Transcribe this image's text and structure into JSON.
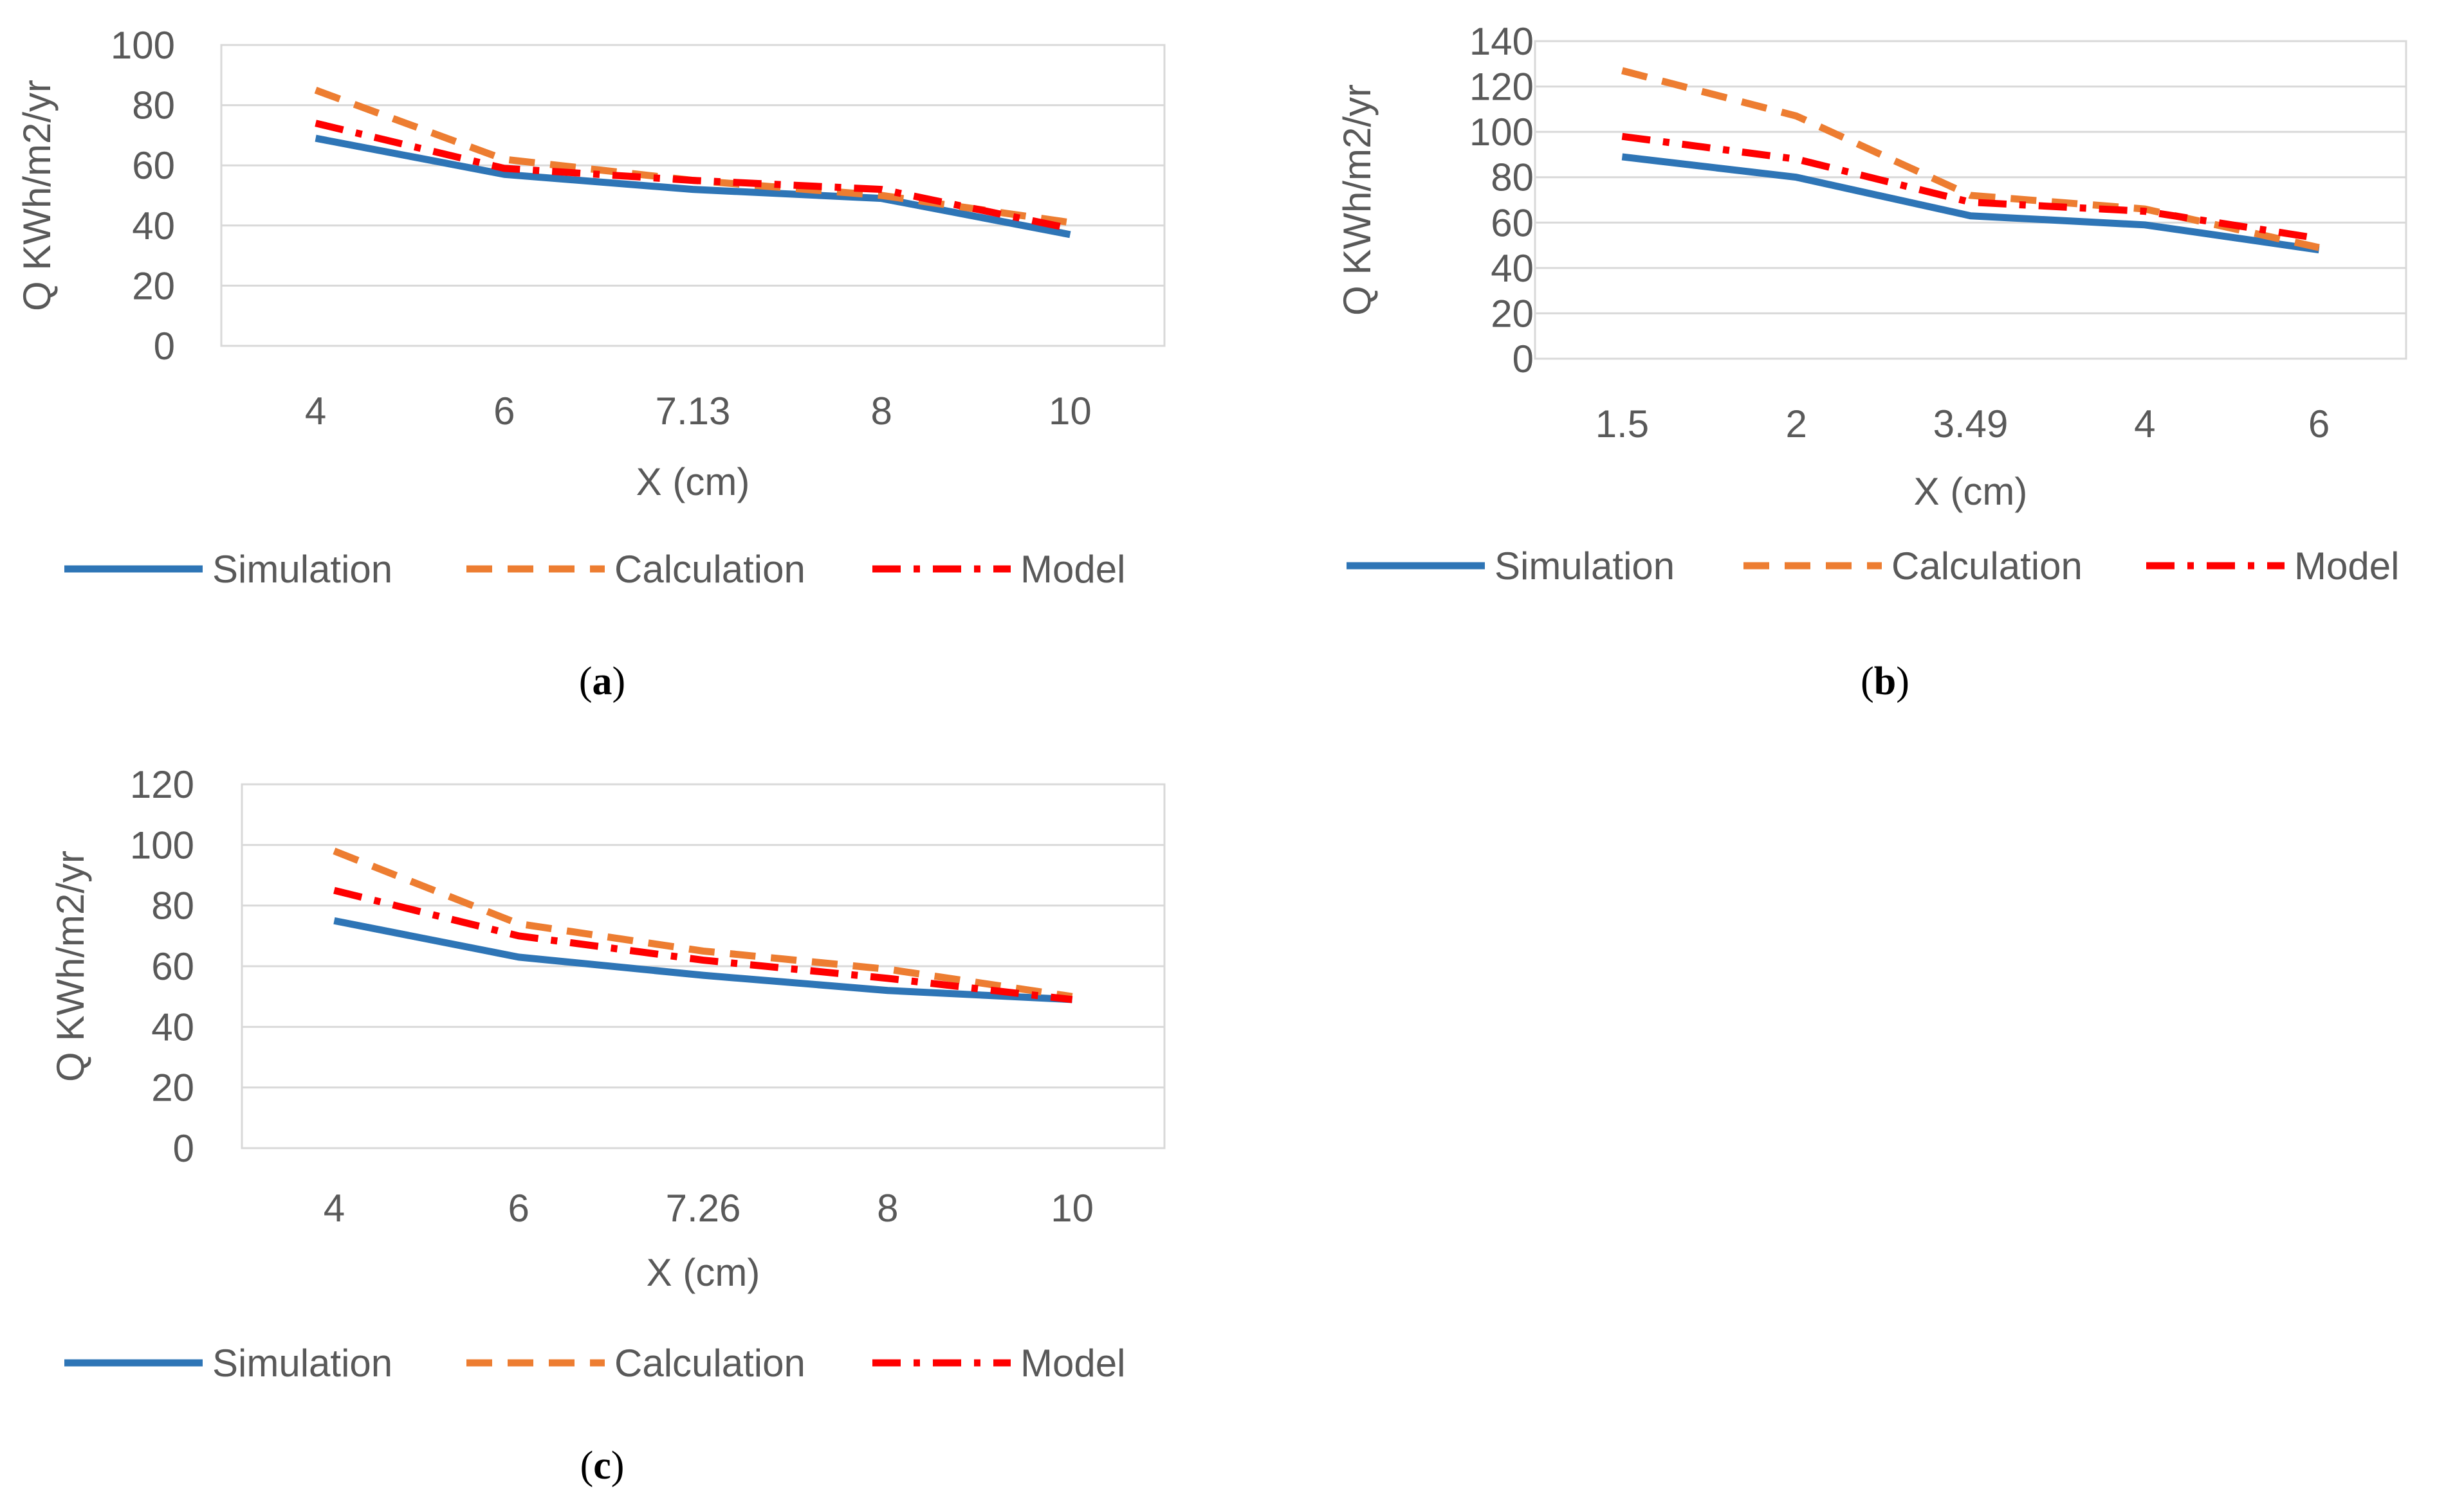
{
  "colors": {
    "simulation": "#2E75B6",
    "calculation": "#ED7D31",
    "model": "#FF0000",
    "grid": "#D9D9D9",
    "text": "#595959"
  },
  "legend": {
    "simulation": "Simulation",
    "calculation": "Calculation",
    "model": "Model"
  },
  "chart_data": [
    {
      "id": "a",
      "type": "line",
      "caption_letter": "a",
      "categories": [
        "4",
        "6",
        "7.13",
        "8",
        "10"
      ],
      "xlabel": "X (cm)",
      "ylabel": "Q KWh/m2/yr",
      "ylim": [
        0,
        100
      ],
      "yticks": [
        "0",
        "20",
        "40",
        "60",
        "80",
        "100"
      ],
      "grid": true,
      "legend_position": "bottom",
      "series": [
        {
          "name": "Simulation",
          "key": "simulation",
          "values": [
            69,
            57,
            52,
            49,
            37
          ]
        },
        {
          "name": "Calculation",
          "key": "calculation",
          "values": [
            85,
            62,
            55,
            50,
            41
          ]
        },
        {
          "name": "Model",
          "key": "model",
          "values": [
            74,
            59,
            55,
            52,
            39
          ]
        }
      ]
    },
    {
      "id": "b",
      "type": "line",
      "caption_letter": "b",
      "categories": [
        "1.5",
        "2",
        "3.49",
        "4",
        "6"
      ],
      "xlabel": "X (cm)",
      "ylabel": "Q KWh/m2/yr",
      "ylim": [
        0,
        140
      ],
      "yticks": [
        "0",
        "20",
        "40",
        "60",
        "80",
        "100",
        "120",
        "140"
      ],
      "grid": true,
      "legend_position": "bottom",
      "series": [
        {
          "name": "Simulation",
          "key": "simulation",
          "values": [
            89,
            80,
            63,
            59,
            48
          ]
        },
        {
          "name": "Calculation",
          "key": "calculation",
          "values": [
            127,
            107,
            72,
            66,
            49
          ]
        },
        {
          "name": "Model",
          "key": "model",
          "values": [
            98,
            88,
            69,
            65,
            53
          ]
        }
      ]
    },
    {
      "id": "c",
      "type": "line",
      "caption_letter": "c",
      "categories": [
        "4",
        "6",
        "7.26",
        "8",
        "10"
      ],
      "xlabel": "X (cm)",
      "ylabel": "Q KWh/m2/yr",
      "ylim": [
        0,
        120
      ],
      "yticks": [
        "0",
        "20",
        "40",
        "60",
        "80",
        "100",
        "120"
      ],
      "grid": true,
      "legend_position": "bottom",
      "series": [
        {
          "name": "Simulation",
          "key": "simulation",
          "values": [
            75,
            63,
            57,
            52,
            49
          ]
        },
        {
          "name": "Calculation",
          "key": "calculation",
          "values": [
            98,
            74,
            65,
            59,
            50
          ]
        },
        {
          "name": "Model",
          "key": "model",
          "values": [
            85,
            70,
            62,
            56,
            49
          ]
        }
      ]
    }
  ]
}
